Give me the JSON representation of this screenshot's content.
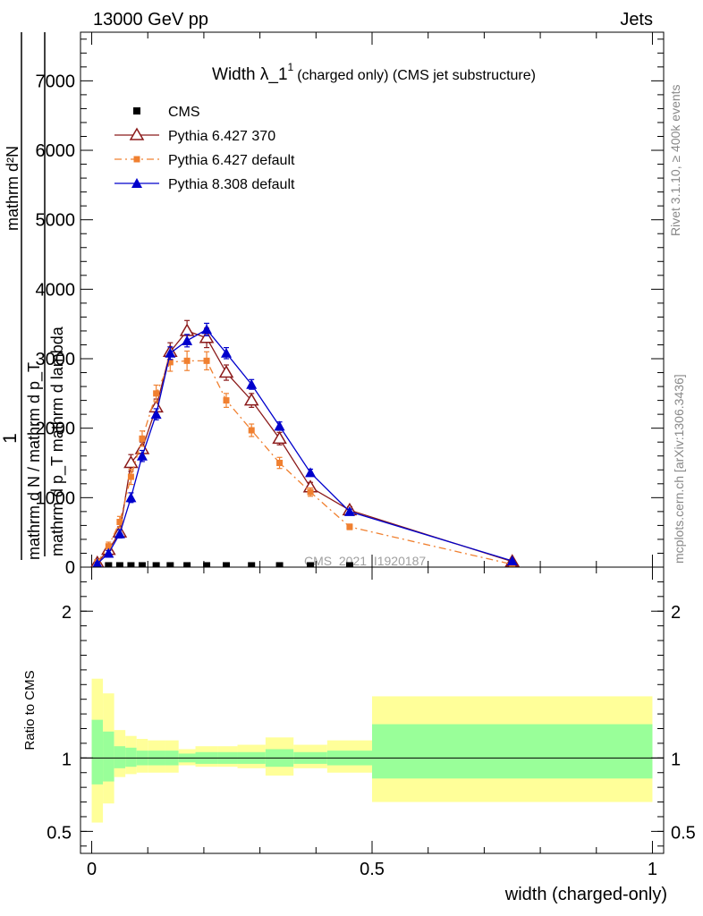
{
  "header": {
    "left": "13000 GeV pp",
    "right": "Jets"
  },
  "side_labels": {
    "rivet": "Rivet 3.1.10, ≥ 400k events",
    "mcplots": "mcplots.cern.ch [arXiv:1306.3436]"
  },
  "watermark": "CMS_2021_I1920187",
  "chart_data": [
    {
      "type": "line",
      "title_main": "Width λ_1",
      "title_sup": "1",
      "title_rest": "(charged only) (CMS jet substructure)",
      "ylabel_parts": {
        "one": "1",
        "denominator": "mathrm d N / mathrm d p_T",
        "numerator_line1": "mathrm d²N",
        "numerator_line2": "mathrm d p_T mathrm d lambda"
      },
      "ylim": [
        0,
        7700
      ],
      "yticks": [
        0,
        1000,
        2000,
        3000,
        4000,
        5000,
        6000,
        7000
      ],
      "ytick_labels": [
        "0",
        "1000",
        "2000",
        "3000",
        "4000",
        "5000",
        "6000",
        "7000"
      ],
      "xlim": [
        -0.02,
        1.02
      ],
      "legend": {
        "placement": "top-left"
      },
      "series": [
        {
          "name": "CMS",
          "color": "#000000",
          "marker": "square",
          "line": "none",
          "x": [
            0.01,
            0.03,
            0.05,
            0.07,
            0.09,
            0.115,
            0.14,
            0.17,
            0.205,
            0.24,
            0.285,
            0.335,
            0.39,
            0.46
          ],
          "y": [
            20,
            20,
            20,
            20,
            20,
            20,
            20,
            20,
            20,
            20,
            20,
            20,
            20,
            20
          ]
        },
        {
          "name": "Pythia 6.427 370",
          "color": "#8b1a1a",
          "marker": "open-triangle",
          "line": "solid",
          "x": [
            0.01,
            0.03,
            0.05,
            0.07,
            0.09,
            0.115,
            0.14,
            0.17,
            0.205,
            0.24,
            0.285,
            0.335,
            0.39,
            0.46,
            0.75
          ],
          "y": [
            60,
            250,
            500,
            1500,
            1700,
            2300,
            3100,
            3400,
            3300,
            2800,
            2400,
            1850,
            1150,
            820,
            80
          ],
          "err": [
            30,
            60,
            80,
            120,
            100,
            120,
            130,
            150,
            140,
            110,
            100,
            90,
            70,
            50,
            20
          ]
        },
        {
          "name": "Pythia 6.427 default",
          "color": "#f08030",
          "marker": "square",
          "line": "dashdot",
          "x": [
            0.01,
            0.03,
            0.05,
            0.07,
            0.09,
            0.115,
            0.14,
            0.17,
            0.205,
            0.24,
            0.285,
            0.335,
            0.39,
            0.46,
            0.75
          ],
          "y": [
            70,
            300,
            650,
            1300,
            1850,
            2500,
            2950,
            2970,
            2970,
            2400,
            1970,
            1500,
            1080,
            580,
            40
          ],
          "err": [
            30,
            60,
            80,
            110,
            110,
            120,
            130,
            140,
            130,
            100,
            90,
            80,
            60,
            40,
            15
          ]
        },
        {
          "name": "Pythia 8.308 default",
          "color": "#0000cc",
          "marker": "filled-triangle",
          "line": "solid",
          "x": [
            0.01,
            0.03,
            0.05,
            0.07,
            0.09,
            0.115,
            0.14,
            0.17,
            0.205,
            0.24,
            0.285,
            0.335,
            0.39,
            0.46,
            0.75
          ],
          "y": [
            50,
            200,
            480,
            1000,
            1600,
            2200,
            3080,
            3260,
            3420,
            3080,
            2630,
            2030,
            1360,
            800,
            90
          ],
          "err": [
            20,
            40,
            60,
            70,
            80,
            80,
            90,
            90,
            90,
            80,
            70,
            60,
            50,
            35,
            10
          ]
        }
      ]
    },
    {
      "type": "area",
      "ylabel": "Ratio to CMS",
      "xlabel": "width (charged-only)",
      "ylim": [
        0.35,
        2.3
      ],
      "yticks": [
        0.5,
        1,
        2
      ],
      "ytick_labels": [
        "0.5",
        "1",
        "2"
      ],
      "xlim": [
        -0.02,
        1.02
      ],
      "xticks": [
        0,
        0.5,
        1
      ],
      "xtick_labels": [
        "0",
        "0.5",
        "1"
      ],
      "reference_line": 1,
      "band_colors": {
        "inner": "#99ff99",
        "outer": "#ffff99"
      },
      "bins": [
        {
          "x0": 0.0,
          "x1": 0.02,
          "outer_lo": 0.56,
          "outer_hi": 1.54,
          "inner_lo": 0.82,
          "inner_hi": 1.26
        },
        {
          "x0": 0.02,
          "x1": 0.04,
          "outer_lo": 0.69,
          "outer_hi": 1.44,
          "inner_lo": 0.84,
          "inner_hi": 1.18
        },
        {
          "x0": 0.04,
          "x1": 0.06,
          "outer_lo": 0.87,
          "outer_hi": 1.19,
          "inner_lo": 0.93,
          "inner_hi": 1.08
        },
        {
          "x0": 0.06,
          "x1": 0.08,
          "outer_lo": 0.89,
          "outer_hi": 1.15,
          "inner_lo": 0.94,
          "inner_hi": 1.07
        },
        {
          "x0": 0.08,
          "x1": 0.1,
          "outer_lo": 0.9,
          "outer_hi": 1.13,
          "inner_lo": 0.95,
          "inner_hi": 1.05
        },
        {
          "x0": 0.1,
          "x1": 0.13,
          "outer_lo": 0.9,
          "outer_hi": 1.12,
          "inner_lo": 0.95,
          "inner_hi": 1.05
        },
        {
          "x0": 0.13,
          "x1": 0.155,
          "outer_lo": 0.9,
          "outer_hi": 1.12,
          "inner_lo": 0.95,
          "inner_hi": 1.05
        },
        {
          "x0": 0.155,
          "x1": 0.185,
          "outer_lo": 0.95,
          "outer_hi": 1.06,
          "inner_lo": 0.97,
          "inner_hi": 1.03
        },
        {
          "x0": 0.185,
          "x1": 0.225,
          "outer_lo": 0.94,
          "outer_hi": 1.08,
          "inner_lo": 0.96,
          "inner_hi": 1.04
        },
        {
          "x0": 0.225,
          "x1": 0.26,
          "outer_lo": 0.94,
          "outer_hi": 1.08,
          "inner_lo": 0.96,
          "inner_hi": 1.04
        },
        {
          "x0": 0.26,
          "x1": 0.31,
          "outer_lo": 0.93,
          "outer_hi": 1.09,
          "inner_lo": 0.96,
          "inner_hi": 1.04
        },
        {
          "x0": 0.31,
          "x1": 0.36,
          "outer_lo": 0.88,
          "outer_hi": 1.14,
          "inner_lo": 0.94,
          "inner_hi": 1.06
        },
        {
          "x0": 0.36,
          "x1": 0.42,
          "outer_lo": 0.93,
          "outer_hi": 1.09,
          "inner_lo": 0.96,
          "inner_hi": 1.04
        },
        {
          "x0": 0.42,
          "x1": 0.5,
          "outer_lo": 0.9,
          "outer_hi": 1.12,
          "inner_lo": 0.95,
          "inner_hi": 1.05
        },
        {
          "x0": 0.5,
          "x1": 1.0,
          "outer_lo": 0.7,
          "outer_hi": 1.42,
          "inner_lo": 0.86,
          "inner_hi": 1.23
        }
      ]
    }
  ]
}
